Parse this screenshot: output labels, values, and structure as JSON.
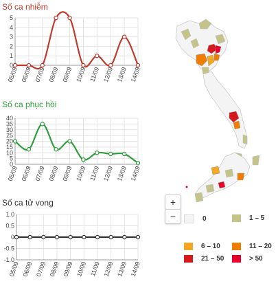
{
  "chart_data": [
    {
      "type": "line",
      "title": "Số ca nhiễm",
      "color": "#c0392b",
      "categories": [
        "05/09",
        "06/09",
        "07/09",
        "08/09",
        "09/09",
        "10/09",
        "11/09",
        "12/09",
        "13/09",
        "14/09"
      ],
      "values": [
        0,
        0,
        0,
        5,
        5,
        0,
        1,
        0,
        3,
        0
      ],
      "ylim": [
        0,
        5
      ],
      "yticks": [
        "0",
        "1",
        "2",
        "3",
        "4",
        "5"
      ],
      "grid": true
    },
    {
      "type": "line",
      "title": "Số ca phục hồi",
      "color": "#2e9e3b",
      "categories": [
        "05/09",
        "06/09",
        "07/09",
        "08/09",
        "09/09",
        "10/09",
        "11/09",
        "12/09",
        "13/09",
        "14/09"
      ],
      "values": [
        20,
        13,
        35,
        13,
        20,
        4,
        10,
        9,
        9,
        1
      ],
      "ylim": [
        0,
        40
      ],
      "yticks": [
        "0",
        "5",
        "10",
        "15",
        "20",
        "25",
        "30",
        "35",
        "40"
      ],
      "grid": true
    },
    {
      "type": "line",
      "title": "Số ca tử vong",
      "color": "#333333",
      "categories": [
        "05/09",
        "06/09",
        "07/09",
        "08/09",
        "09/09",
        "10/09",
        "11/09",
        "12/09",
        "13/09",
        "14/09"
      ],
      "values": [
        0,
        0,
        0,
        0,
        0,
        0,
        0,
        0,
        0,
        0
      ],
      "ylim": [
        -1,
        1
      ],
      "yticks": [
        "-1.0",
        "-0.5",
        "0",
        "0.5",
        "1.0"
      ],
      "grid": true
    }
  ],
  "map": {
    "zoom_in_label": "+",
    "zoom_out_label": "−",
    "legend": [
      {
        "label": "0",
        "color": "#f4f4f4"
      },
      {
        "label": "1 – 5",
        "color": "#c4c48a"
      },
      {
        "label": "6 – 10",
        "color": "#f5a623"
      },
      {
        "label": "11 – 20",
        "color": "#ef7d00"
      },
      {
        "label": "21 – 50",
        "color": "#d7191c"
      },
      {
        "label": "> 50",
        "color": "#e8002a"
      }
    ]
  }
}
